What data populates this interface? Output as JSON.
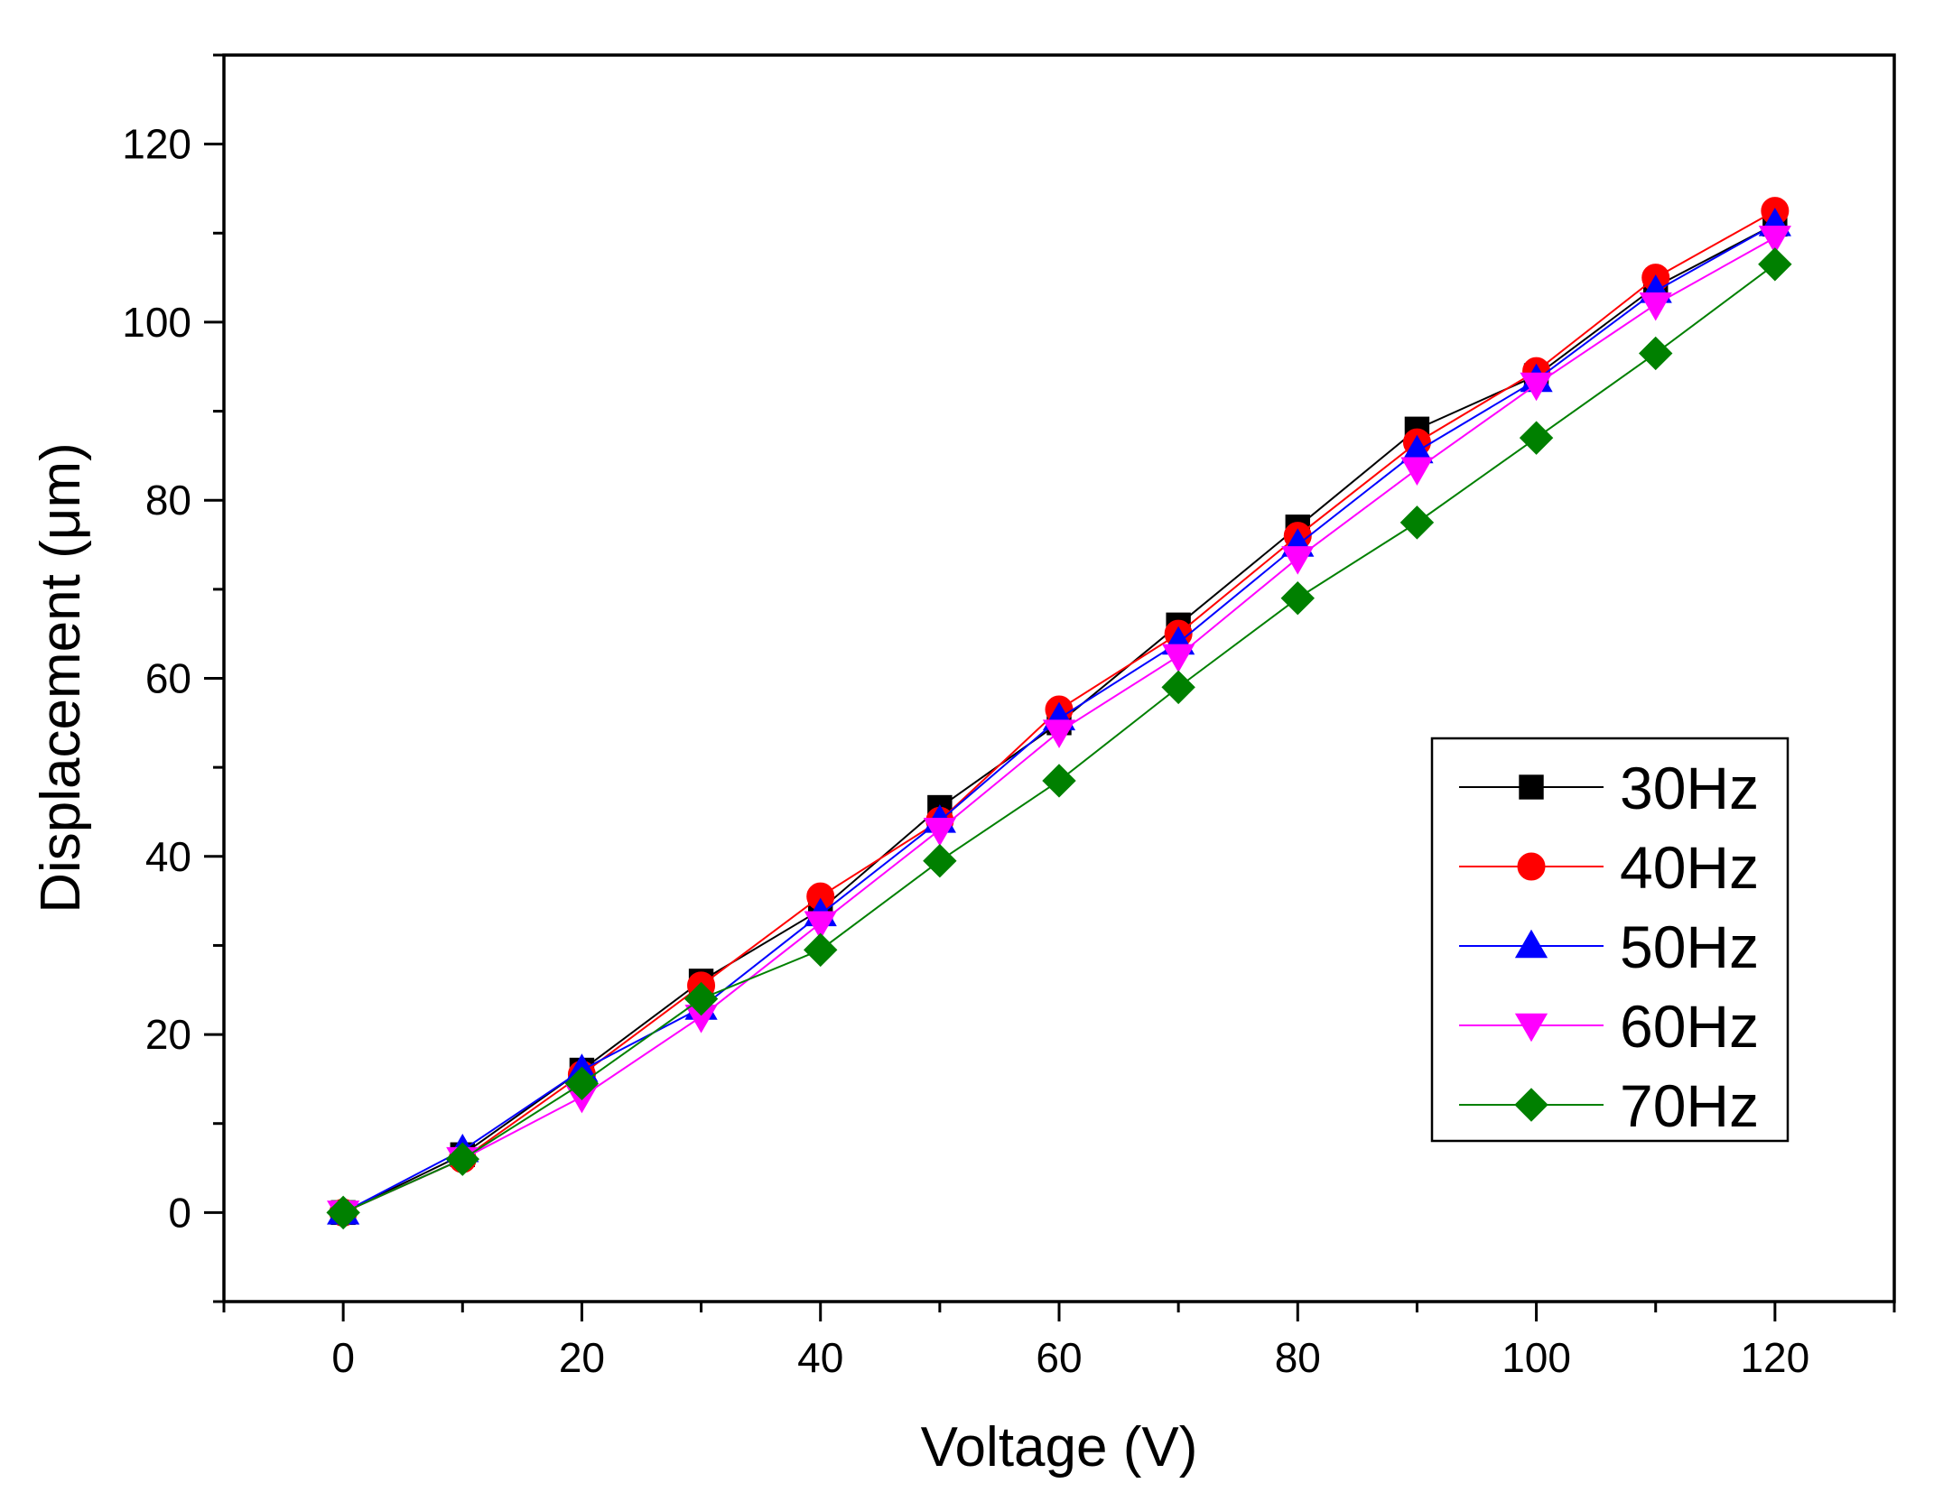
{
  "chart_data": {
    "type": "line",
    "title": "",
    "xlabel": "Voltage (V)",
    "ylabel": "Displacement (μm)",
    "xlim": [
      -10,
      130
    ],
    "ylim": [
      -10,
      130
    ],
    "xticks": [
      0,
      20,
      40,
      60,
      80,
      100,
      120
    ],
    "xtick_labels": [
      "0",
      "20",
      "40",
      "60",
      "80",
      "100",
      "120"
    ],
    "yticks": [
      0,
      20,
      40,
      60,
      80,
      100,
      120
    ],
    "ytick_labels": [
      "0",
      "20",
      "40",
      "60",
      "80",
      "100",
      "120"
    ],
    "grid": false,
    "legend_position": "center-right",
    "x": [
      0,
      10,
      20,
      30,
      40,
      50,
      60,
      70,
      80,
      90,
      100,
      110,
      120
    ],
    "series": [
      {
        "name": "30Hz",
        "color": "#000000",
        "marker": "square",
        "values": [
          0,
          6.5,
          16,
          26,
          34,
          45.5,
          55,
          66,
          77,
          88,
          94,
          104,
          111
        ]
      },
      {
        "name": "40Hz",
        "color": "#ff0000",
        "marker": "circle",
        "values": [
          0,
          6,
          15.5,
          25.5,
          35.5,
          44,
          56.5,
          65,
          76,
          86.5,
          94.5,
          105,
          112.5
        ]
      },
      {
        "name": "50Hz",
        "color": "#0000ff",
        "marker": "triangle-up",
        "values": [
          0,
          7,
          16,
          23,
          33.5,
          44,
          55.5,
          64,
          75,
          85.5,
          93.5,
          103.5,
          111
        ]
      },
      {
        "name": "60Hz",
        "color": "#ff00ff",
        "marker": "triangle-down",
        "values": [
          0,
          6,
          13,
          22,
          32.5,
          43,
          54,
          62.5,
          73.5,
          83.5,
          93,
          102,
          109.5
        ]
      },
      {
        "name": "70Hz",
        "color": "#008000",
        "marker": "diamond",
        "values": [
          0,
          6,
          14.5,
          24,
          29.5,
          39.5,
          48.5,
          59,
          69,
          77.5,
          87,
          96.5,
          106.5
        ]
      }
    ]
  }
}
